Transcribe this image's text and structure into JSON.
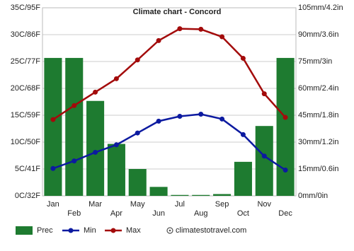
{
  "chart_data": {
    "type": "combo",
    "title": "Climate chart - Concord",
    "categories": [
      "Jan",
      "Feb",
      "Mar",
      "Apr",
      "May",
      "Jun",
      "Jul",
      "Aug",
      "Sep",
      "Oct",
      "Nov",
      "Dec"
    ],
    "series": [
      {
        "name": "Prec",
        "type": "bar",
        "axis": "y2",
        "color": "#1e7b30",
        "values": [
          77,
          77,
          53,
          29,
          15,
          5,
          0.5,
          0.5,
          1,
          19,
          39,
          77
        ]
      },
      {
        "name": "Min",
        "type": "line",
        "color": "#0c1aa0",
        "values": [
          5.1,
          6.5,
          8.1,
          9.5,
          11.7,
          13.9,
          14.8,
          15.2,
          14.3,
          11.4,
          7.4,
          4.8
        ]
      },
      {
        "name": "Max",
        "type": "line",
        "color": "#a30b0b",
        "values": [
          14.2,
          16.8,
          19.3,
          21.8,
          25.3,
          28.9,
          31.1,
          31.0,
          29.6,
          25.6,
          19.0,
          14.6
        ]
      }
    ],
    "ylim": [
      0,
      35
    ],
    "yticks": [
      {
        "value": 0,
        "label": "0C/32F"
      },
      {
        "value": 5,
        "label": "5C/41F"
      },
      {
        "value": 10,
        "label": "10C/50F"
      },
      {
        "value": 15,
        "label": "15C/59F"
      },
      {
        "value": 20,
        "label": "20C/68F"
      },
      {
        "value": 25,
        "label": "25C/77F"
      },
      {
        "value": 30,
        "label": "30C/86F"
      },
      {
        "value": 35,
        "label": "35C/95F"
      }
    ],
    "y2lim": [
      0,
      105
    ],
    "y2ticks": [
      {
        "value": 0,
        "label": "0mm/0in"
      },
      {
        "value": 15,
        "label": "15mm/0.6in"
      },
      {
        "value": 30,
        "label": "30mm/1.2in"
      },
      {
        "value": 45,
        "label": "45mm/1.8in"
      },
      {
        "value": 60,
        "label": "60mm/2.4in"
      },
      {
        "value": 75,
        "label": "75mm/3in"
      },
      {
        "value": 90,
        "label": "90mm/3.6in"
      },
      {
        "value": 105,
        "label": "105mm/4.2in"
      }
    ],
    "grid": true,
    "source": "climatestotravel.com"
  }
}
